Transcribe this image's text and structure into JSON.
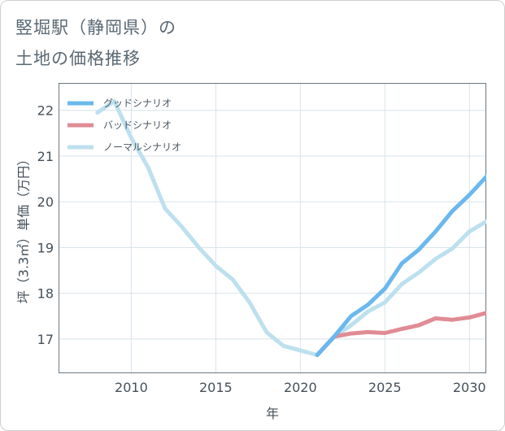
{
  "title": {
    "line1": "竪堀駅（静岡県）の",
    "line2": "土地の価格推移"
  },
  "chart_data": {
    "type": "line",
    "xlabel": "年",
    "ylabel": "坪（3.3㎡）単価（万円）",
    "xlim": [
      2005.7,
      2031.0
    ],
    "ylim": [
      16.25,
      22.6
    ],
    "xticks": [
      2010,
      2015,
      2020,
      2025,
      2030
    ],
    "yticks": [
      17,
      18,
      19,
      20,
      21,
      22
    ],
    "grid": true,
    "legend_position": "top-left",
    "series": [
      {
        "name": "グッドシナリオ",
        "color": "#6ab8ee",
        "x": [
          2021,
          2022,
          2023,
          2024,
          2025,
          2026,
          2027,
          2028,
          2029,
          2030,
          2031
        ],
        "values": [
          16.65,
          17.05,
          17.5,
          17.75,
          18.1,
          18.65,
          18.95,
          19.35,
          19.8,
          20.15,
          20.55
        ]
      },
      {
        "name": "バッドシナリオ",
        "color": "#e08c95",
        "x": [
          2021,
          2022,
          2023,
          2024,
          2025,
          2026,
          2027,
          2028,
          2029,
          2030,
          2031
        ],
        "values": [
          16.65,
          17.05,
          17.12,
          17.15,
          17.13,
          17.22,
          17.3,
          17.45,
          17.42,
          17.47,
          17.57
        ]
      },
      {
        "name": "ノーマルシナリオ",
        "color": "#bde0ee",
        "x": [
          2008,
          2009,
          2010,
          2011,
          2012,
          2013,
          2014,
          2015,
          2016,
          2017,
          2018,
          2019,
          2020,
          2021,
          2022,
          2023,
          2024,
          2025,
          2026,
          2027,
          2028,
          2029,
          2030,
          2031
        ],
        "values": [
          21.95,
          22.2,
          21.4,
          20.75,
          19.85,
          19.45,
          19.0,
          18.6,
          18.3,
          17.8,
          17.15,
          16.85,
          16.75,
          16.65,
          17.05,
          17.3,
          17.6,
          17.8,
          18.2,
          18.45,
          18.75,
          18.98,
          19.35,
          19.57
        ]
      }
    ]
  }
}
